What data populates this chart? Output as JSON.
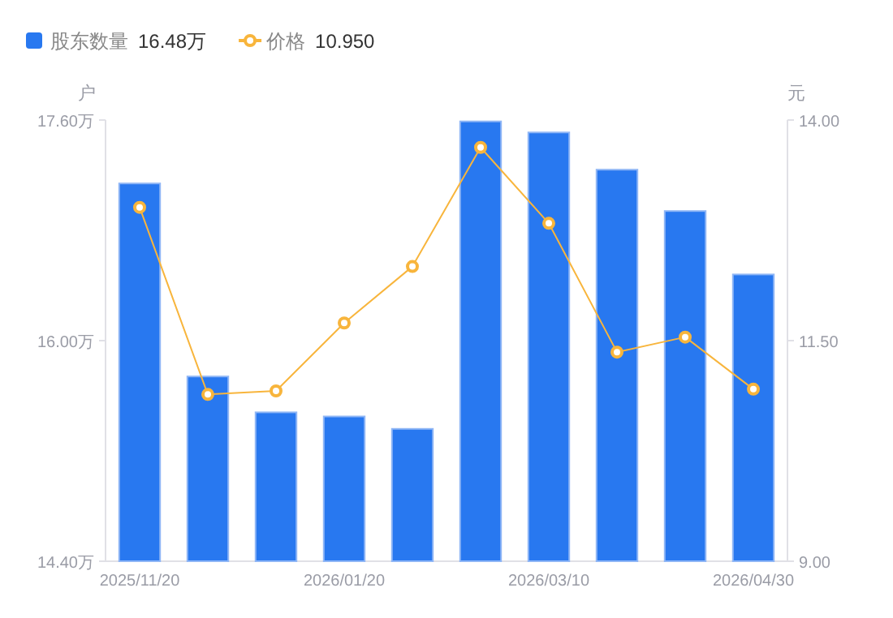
{
  "chart_data": {
    "type": "bar",
    "ylabel": "户",
    "y2label": "元",
    "categories": [
      "2025/11/20",
      null,
      null,
      "2026/01/20",
      null,
      null,
      "2026/03/10",
      null,
      null,
      "2026/04/30"
    ],
    "series": [
      {
        "name": "股东数量",
        "color": "#2878f0",
        "values": [
          17.14,
          15.74,
          15.48,
          15.45,
          15.36,
          17.59,
          17.51,
          17.24,
          16.94,
          16.48
        ]
      },
      {
        "name": "价格",
        "type": "line",
        "axis": "y2",
        "color": "#f8b53c",
        "marker": "circle",
        "values": [
          13.01,
          10.89,
          10.93,
          11.7,
          12.34,
          13.69,
          12.83,
          11.37,
          11.54,
          10.95
        ]
      }
    ],
    "ylim": [
      14.4,
      17.6
    ],
    "yticks": [
      {
        "value": 14.4,
        "label": "14.40万"
      },
      {
        "value": 16.0,
        "label": "16.00万"
      },
      {
        "value": 17.6,
        "label": "17.60万"
      }
    ],
    "y2lim": [
      9,
      14
    ],
    "y2ticks": [
      {
        "value": 9,
        "label": "9.00"
      },
      {
        "value": 11.5,
        "label": "11.50"
      },
      {
        "value": 14,
        "label": "14.00"
      }
    ],
    "legend": "top left",
    "annotations": [
      "16.48万",
      "10.950"
    ]
  }
}
